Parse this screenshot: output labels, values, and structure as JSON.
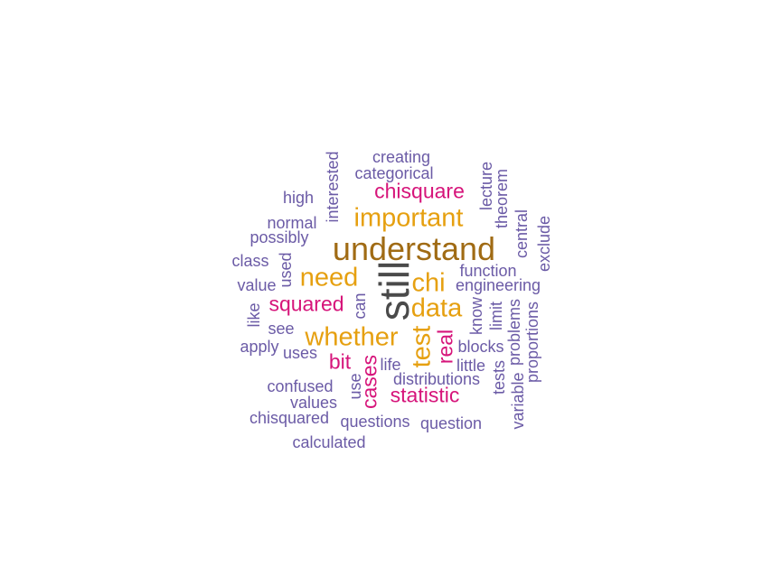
{
  "colors": {
    "gray": "#4a4a4a",
    "brown": "#a06b14",
    "orange": "#e6a010",
    "magenta": "#d6147a",
    "purple": "#6b5ba6"
  },
  "words": [
    {
      "text": "still",
      "color": "gray",
      "orientation": "vertical"
    },
    {
      "text": "understand",
      "color": "brown",
      "orientation": "horizontal"
    },
    {
      "text": "important",
      "color": "orange",
      "orientation": "horizontal"
    },
    {
      "text": "need",
      "color": "orange",
      "orientation": "horizontal"
    },
    {
      "text": "chi",
      "color": "orange",
      "orientation": "horizontal"
    },
    {
      "text": "data",
      "color": "orange",
      "orientation": "horizontal"
    },
    {
      "text": "whether",
      "color": "orange",
      "orientation": "horizontal"
    },
    {
      "text": "test",
      "color": "orange",
      "orientation": "vertical"
    },
    {
      "text": "chisquare",
      "color": "magenta",
      "orientation": "horizontal"
    },
    {
      "text": "squared",
      "color": "magenta",
      "orientation": "horizontal"
    },
    {
      "text": "statistic",
      "color": "magenta",
      "orientation": "horizontal"
    },
    {
      "text": "bit",
      "color": "magenta",
      "orientation": "horizontal"
    },
    {
      "text": "cases",
      "color": "magenta",
      "orientation": "vertical"
    },
    {
      "text": "real",
      "color": "magenta",
      "orientation": "vertical"
    },
    {
      "text": "creating",
      "color": "purple",
      "orientation": "horizontal"
    },
    {
      "text": "categorical",
      "color": "purple",
      "orientation": "horizontal"
    },
    {
      "text": "high",
      "color": "purple",
      "orientation": "horizontal"
    },
    {
      "text": "interested",
      "color": "purple",
      "orientation": "vertical"
    },
    {
      "text": "lecture",
      "color": "purple",
      "orientation": "vertical"
    },
    {
      "text": "theorem",
      "color": "purple",
      "orientation": "vertical"
    },
    {
      "text": "normal",
      "color": "purple",
      "orientation": "horizontal"
    },
    {
      "text": "possibly",
      "color": "purple",
      "orientation": "horizontal"
    },
    {
      "text": "central",
      "color": "purple",
      "orientation": "vertical"
    },
    {
      "text": "exclude",
      "color": "purple",
      "orientation": "vertical"
    },
    {
      "text": "class",
      "color": "purple",
      "orientation": "horizontal"
    },
    {
      "text": "used",
      "color": "purple",
      "orientation": "vertical"
    },
    {
      "text": "function",
      "color": "purple",
      "orientation": "horizontal"
    },
    {
      "text": "value",
      "color": "purple",
      "orientation": "horizontal"
    },
    {
      "text": "engineering",
      "color": "purple",
      "orientation": "horizontal"
    },
    {
      "text": "can",
      "color": "purple",
      "orientation": "vertical"
    },
    {
      "text": "like",
      "color": "purple",
      "orientation": "vertical"
    },
    {
      "text": "know",
      "color": "purple",
      "orientation": "vertical"
    },
    {
      "text": "limit",
      "color": "purple",
      "orientation": "vertical"
    },
    {
      "text": "see",
      "color": "purple",
      "orientation": "horizontal"
    },
    {
      "text": "problems",
      "color": "purple",
      "orientation": "vertical"
    },
    {
      "text": "proportions",
      "color": "purple",
      "orientation": "vertical"
    },
    {
      "text": "apply",
      "color": "purple",
      "orientation": "horizontal"
    },
    {
      "text": "uses",
      "color": "purple",
      "orientation": "horizontal"
    },
    {
      "text": "blocks",
      "color": "purple",
      "orientation": "horizontal"
    },
    {
      "text": "life",
      "color": "purple",
      "orientation": "horizontal"
    },
    {
      "text": "little",
      "color": "purple",
      "orientation": "horizontal"
    },
    {
      "text": "tests",
      "color": "purple",
      "orientation": "vertical"
    },
    {
      "text": "variable",
      "color": "purple",
      "orientation": "vertical"
    },
    {
      "text": "distributions",
      "color": "purple",
      "orientation": "horizontal"
    },
    {
      "text": "confused",
      "color": "purple",
      "orientation": "horizontal"
    },
    {
      "text": "use",
      "color": "purple",
      "orientation": "vertical"
    },
    {
      "text": "values",
      "color": "purple",
      "orientation": "horizontal"
    },
    {
      "text": "chisquared",
      "color": "purple",
      "orientation": "horizontal"
    },
    {
      "text": "questions",
      "color": "purple",
      "orientation": "horizontal"
    },
    {
      "text": "question",
      "color": "purple",
      "orientation": "horizontal"
    },
    {
      "text": "calculated",
      "color": "purple",
      "orientation": "horizontal"
    }
  ]
}
